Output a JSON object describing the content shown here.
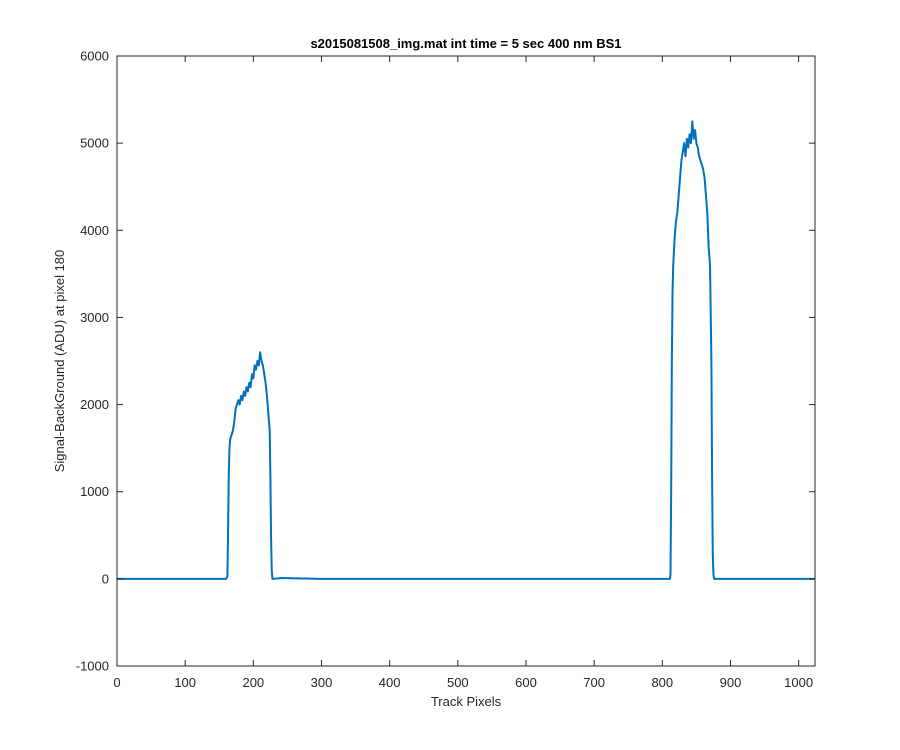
{
  "chart_data": {
    "type": "line",
    "title": "s2015081508_img.mat int time = 5 sec  400 nm BS1",
    "xlabel": "Track Pixels",
    "ylabel": "Signal-BackGround (ADU) at pixel 180",
    "xlim": [
      0,
      1024
    ],
    "ylim": [
      -1000,
      6000
    ],
    "xticks": [
      0,
      100,
      200,
      300,
      400,
      500,
      600,
      700,
      800,
      900,
      1000
    ],
    "yticks": [
      -1000,
      0,
      1000,
      2000,
      3000,
      4000,
      5000,
      6000
    ],
    "xtick_labels": [
      "0",
      "100",
      "200",
      "300",
      "400",
      "500",
      "600",
      "700",
      "800",
      "900",
      "1000"
    ],
    "ytick_labels": [
      "-1000",
      "0",
      "1000",
      "2000",
      "3000",
      "4000",
      "5000",
      "6000"
    ],
    "grid": false,
    "line_color": "#0072BD",
    "series": [
      {
        "x": [
          0,
          160,
          162,
          163,
          164,
          165,
          166,
          168,
          170,
          172,
          174,
          176,
          178,
          180,
          182,
          184,
          186,
          188,
          190,
          192,
          194,
          196,
          198,
          200,
          202,
          204,
          206,
          208,
          210,
          212,
          214,
          216,
          218,
          220,
          222,
          224,
          225,
          226,
          227,
          228,
          230,
          240,
          300,
          400,
          500,
          600,
          700,
          800,
          811,
          812,
          813,
          814,
          815,
          816,
          818,
          820,
          822,
          824,
          826,
          828,
          830,
          832,
          834,
          836,
          838,
          840,
          842,
          844,
          846,
          848,
          850,
          852,
          854,
          856,
          858,
          860,
          862,
          864,
          866,
          868,
          870,
          872,
          873,
          874,
          875,
          876,
          878,
          880,
          900,
          1000,
          1024
        ],
        "y": [
          0,
          0,
          30,
          600,
          1200,
          1500,
          1600,
          1650,
          1700,
          1800,
          1950,
          2000,
          2050,
          2000,
          2100,
          2050,
          2150,
          2100,
          2200,
          2150,
          2250,
          2200,
          2350,
          2300,
          2450,
          2400,
          2500,
          2450,
          2600,
          2500,
          2450,
          2350,
          2250,
          2100,
          1900,
          1700,
          1200,
          500,
          100,
          0,
          0,
          10,
          0,
          0,
          0,
          0,
          0,
          0,
          0,
          50,
          1000,
          2500,
          3300,
          3600,
          3900,
          4100,
          4200,
          4400,
          4600,
          4800,
          4900,
          5000,
          4850,
          5050,
          4950,
          5100,
          5000,
          5250,
          5050,
          5150,
          5000,
          4950,
          4850,
          4800,
          4750,
          4700,
          4600,
          4400,
          4200,
          3800,
          3600,
          2500,
          1200,
          300,
          50,
          0,
          0,
          0,
          0,
          0,
          0
        ]
      }
    ]
  }
}
